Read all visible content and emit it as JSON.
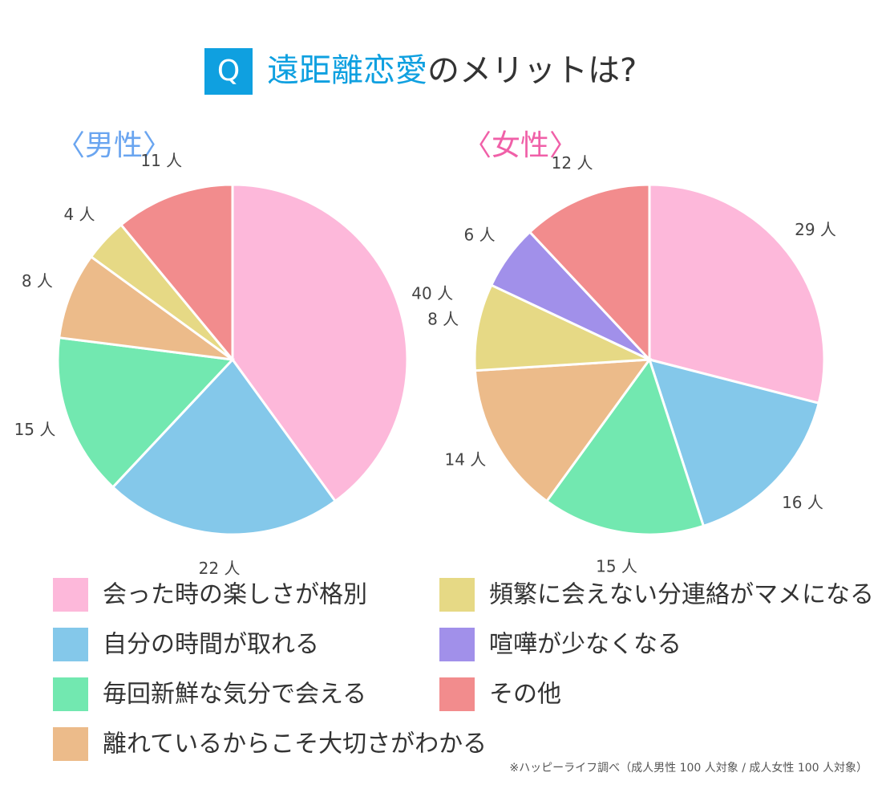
{
  "title": {
    "badge": "Q",
    "highlight": "遠距離恋愛",
    "rest": "のメリットは?"
  },
  "categories": [
    "会った時の楽しさが格別",
    "自分の時間が取れる",
    "毎回新鮮な気分で会える",
    "離れているからこそ大切さがわかる",
    "頻繁に会えない分連絡がマメになる",
    "喧嘩が少なくなる",
    "その他"
  ],
  "colors": [
    "#fdb8da",
    "#84c8ea",
    "#72e8b0",
    "#ecbb8a",
    "#e6d985",
    "#a190ea",
    "#f28c8d"
  ],
  "source": "※ハッピーライフ調べ（成人男性 100 人対象 / 成人女性 100 人対象）",
  "chart_data": [
    {
      "type": "pie",
      "title": "〈男性〉",
      "title_color": "#6aa5f0",
      "values": [
        40,
        22,
        15,
        8,
        4,
        null,
        11
      ],
      "value_labels": [
        "40 人",
        "22 人",
        "15 人",
        "8 人",
        "4 人",
        null,
        "11 人"
      ]
    },
    {
      "type": "pie",
      "title": "〈女性〉",
      "title_color": "#f060a8",
      "values": [
        29,
        16,
        15,
        14,
        8,
        6,
        12
      ],
      "value_labels": [
        "29 人",
        "16 人",
        "15 人",
        "14 人",
        "8 人",
        "6 人",
        "12 人"
      ]
    }
  ]
}
